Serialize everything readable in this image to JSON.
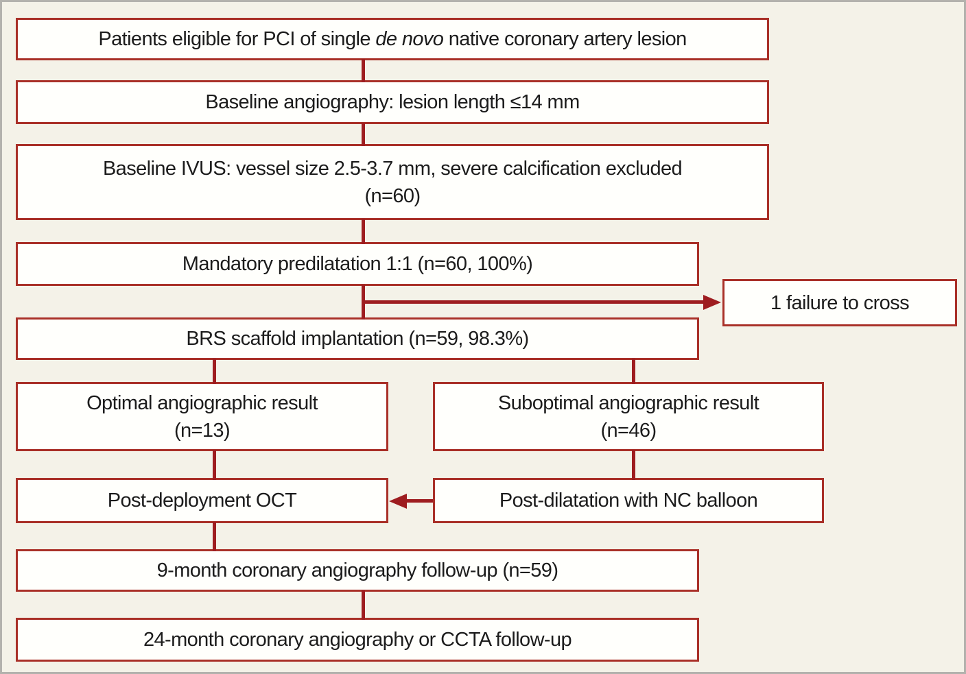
{
  "palette": {
    "canvas_background": "#f4f2e8",
    "frame_border": "#b3b2ad",
    "box_background": "#fffffc",
    "box_border": "#a93028",
    "connector": "#9e1d20",
    "text": "#1c1c1c"
  },
  "flowchart": {
    "boxes": {
      "eligible": {
        "pre": "Patients eligible for PCI of single ",
        "emphasis": "de novo",
        "post": " native coronary artery lesion"
      },
      "angiography": {
        "text": "Baseline angiography: lesion length ≤14 mm"
      },
      "ivus": {
        "line1": "Baseline IVUS: vessel size 2.5-3.7 mm, severe calcification excluded",
        "line2": "(n=60)"
      },
      "predilatation": {
        "text": "Mandatory predilatation 1:1 (n=60, 100%)"
      },
      "failure": {
        "text": "1 failure to cross"
      },
      "brs": {
        "text": "BRS scaffold implantation (n=59, 98.3%)"
      },
      "optimal": {
        "line1": "Optimal angiographic result",
        "line2": "(n=13)"
      },
      "suboptimal": {
        "line1": "Suboptimal angiographic result",
        "line2": "(n=46)"
      },
      "oct": {
        "text": "Post-deployment OCT"
      },
      "nc_balloon": {
        "text": "Post-dilatation with NC balloon"
      },
      "month9": {
        "text": "9-month coronary angiography follow-up (n=59)"
      },
      "month24": {
        "text": "24-month coronary angiography or CCTA follow-up"
      }
    }
  }
}
